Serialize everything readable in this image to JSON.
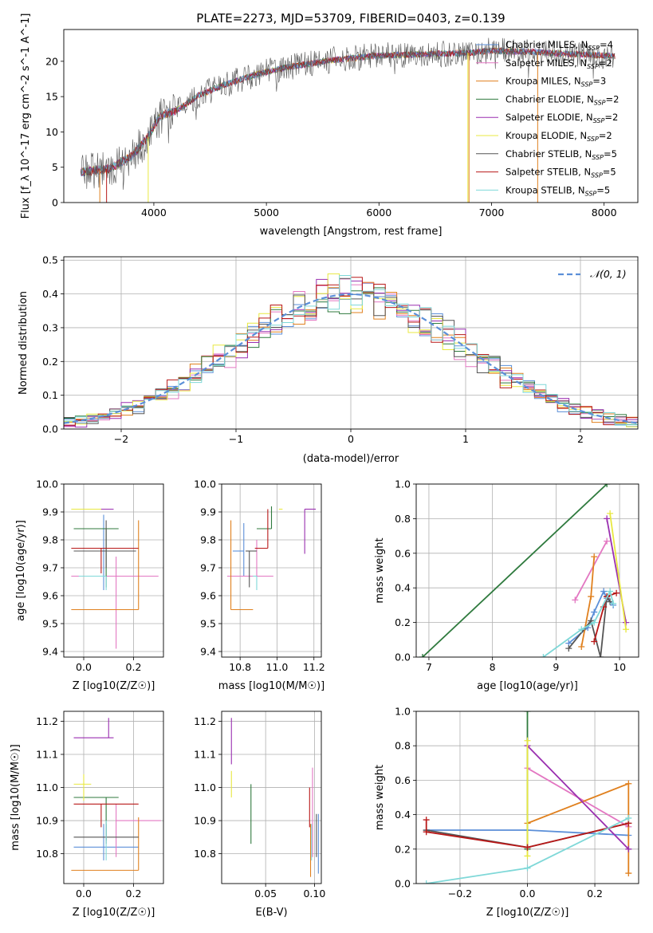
{
  "figure_title": "PLATE=2273, MJD=53709, FIBERID=0403, z=0.139",
  "colors": [
    "#5b8fd8",
    "#e377c2",
    "#e0801e",
    "#2f7a3e",
    "#9a2fb0",
    "#e8e840",
    "#555555",
    "#b81818",
    "#7fd8d8"
  ],
  "chart_data": [
    {
      "type": "line",
      "title": "PLATE=2273, MJD=53709, FIBERID=0403, z=0.139",
      "xlabel": "wavelength [Angstrom, rest frame]",
      "ylabel": "Flux [f_λ 10^-17 erg cm^-2 s^-1 A^-1]",
      "xlim": [
        3200,
        8300
      ],
      "ylim": [
        0,
        24.5
      ],
      "xticks": [
        4000,
        5000,
        6000,
        7000,
        8000
      ],
      "yticks": [
        0,
        5,
        10,
        15,
        20
      ],
      "grid": false,
      "legend_position": "right",
      "legend": [
        {
          "label": "Chabrier MILES, N",
          "sub": "SSP",
          "value": "=4"
        },
        {
          "label": "Salpeter MILES, N",
          "sub": "SSP",
          "value": "=2"
        },
        {
          "label": "Kroupa MILES, N",
          "sub": "SSP",
          "value": "=3"
        },
        {
          "label": "Chabrier ELODIE, N",
          "sub": "SSP",
          "value": "=2"
        },
        {
          "label": "Salpeter ELODIE, N",
          "sub": "SSP",
          "value": "=2"
        },
        {
          "label": "Kroupa ELODIE, N",
          "sub": "SSP",
          "value": "=2"
        },
        {
          "label": "Chabrier STELIB, N",
          "sub": "SSP",
          "value": "=5"
        },
        {
          "label": "Salpeter STELIB, N",
          "sub": "SSP",
          "value": "=5"
        },
        {
          "label": "Kroupa STELIB, N",
          "sub": "SSP",
          "value": "=5"
        }
      ],
      "continuum": {
        "x": [
          3350,
          3600,
          3800,
          3950,
          4050,
          4200,
          4400,
          4600,
          4800,
          5000,
          5200,
          5400,
          5600,
          5800,
          6000,
          6200,
          6400,
          6600,
          6800,
          7000,
          7200,
          7400,
          7600,
          7800,
          8000,
          8100
        ],
        "y": [
          4.3,
          4.8,
          6.5,
          9.3,
          12.2,
          13.0,
          15.2,
          16.5,
          17.6,
          18.5,
          19.2,
          19.7,
          20.2,
          20.5,
          20.8,
          20.9,
          21.0,
          21.1,
          21.2,
          21.5,
          21.4,
          21.3,
          21.1,
          21.0,
          20.8,
          20.7
        ]
      }
    },
    {
      "type": "line",
      "xlabel": "(data-model)/error",
      "ylabel": "Normed distribution",
      "xlim": [
        -2.5,
        2.5
      ],
      "ylim": [
        0,
        0.51
      ],
      "xticks": [
        -2,
        -1,
        0,
        1,
        2
      ],
      "yticks": [
        0.0,
        0.1,
        0.2,
        0.3,
        0.4,
        0.5
      ],
      "grid": true,
      "legend_position": "top-right",
      "legend": [
        "𝒩(0, 1)"
      ],
      "bin_width": 0.1
    },
    {
      "type": "scatter",
      "xlabel": "Z [log10(Z/Z☉)]",
      "ylabel": "age [log10(age/yr)]",
      "xlim": [
        -0.08,
        0.32
      ],
      "ylim": [
        9.38,
        10.0
      ],
      "xticks": [
        0.0,
        0.2
      ],
      "yticks": [
        9.4,
        9.5,
        9.6,
        9.7,
        9.8,
        9.9,
        10.0
      ],
      "grid": true,
      "points": [
        {
          "x": 0.08,
          "y": 9.67,
          "xerr": [
            0.12,
            0.14
          ],
          "yerr": [
            0.05,
            0.22
          ]
        },
        {
          "x": 0.13,
          "y": 9.67,
          "xerr": [
            0.18,
            0.17
          ],
          "yerr": [
            0.26,
            0.07
          ]
        },
        {
          "x": 0.22,
          "y": 9.55,
          "xerr": [
            0.27,
            0.0
          ],
          "yerr": [
            0.0,
            0.32
          ]
        },
        {
          "x": 0.09,
          "y": 9.84,
          "xerr": [
            0.13,
            0.05
          ],
          "yerr": [
            0.21,
            0.0
          ]
        },
        {
          "x": 0.1,
          "y": 9.91,
          "xerr": [
            0.13,
            0.02
          ],
          "yerr": [
            0.0,
            0.0
          ]
        },
        {
          "x": 0.06,
          "y": 9.91,
          "xerr": [
            0.11,
            0.01
          ],
          "yerr": [
            0.0,
            0.0
          ]
        },
        {
          "x": 0.09,
          "y": 9.76,
          "xerr": [
            0.13,
            0.12
          ],
          "yerr": [
            0.06,
            0.11
          ]
        },
        {
          "x": 0.07,
          "y": 9.77,
          "xerr": [
            0.12,
            0.15
          ],
          "yerr": [
            0.09,
            0.0
          ]
        },
        {
          "x": 0.09,
          "y": 9.67,
          "xerr": [
            0.11,
            0.0
          ],
          "yerr": [
            0.05,
            0.0
          ]
        }
      ]
    },
    {
      "type": "scatter",
      "xlabel": "mass [log10(M/M☉)]",
      "ylabel": "",
      "xlim": [
        10.7,
        11.24
      ],
      "ylim": [
        9.38,
        10.0
      ],
      "xticks": [
        10.8,
        11.0,
        11.2
      ],
      "yticks": [
        9.4,
        9.5,
        9.6,
        9.7,
        9.8,
        9.9,
        10.0
      ],
      "grid": true,
      "points": [
        {
          "x": 10.82,
          "y": 9.76,
          "xerr": [
            0.06,
            0.0
          ],
          "yerr": [
            0.09,
            0.1
          ]
        },
        {
          "x": 10.89,
          "y": 9.67,
          "xerr": [
            0.16,
            0.09
          ],
          "yerr": [
            0.0,
            0.13
          ]
        },
        {
          "x": 10.75,
          "y": 9.55,
          "xerr": [
            0.0,
            0.12
          ],
          "yerr": [
            0.0,
            0.32
          ]
        },
        {
          "x": 10.97,
          "y": 9.84,
          "xerr": [
            0.08,
            0.0
          ],
          "yerr": [
            0.0,
            0.08
          ]
        },
        {
          "x": 11.15,
          "y": 9.91,
          "xerr": [
            0.0,
            0.06
          ],
          "yerr": [
            0.16,
            0.0
          ]
        },
        {
          "x": 11.01,
          "y": 9.91,
          "xerr": [
            0.0,
            0.02
          ],
          "yerr": [
            0.0,
            0.0
          ]
        },
        {
          "x": 10.85,
          "y": 9.76,
          "xerr": [
            0.02,
            0.04
          ],
          "yerr": [
            0.13,
            0.0
          ]
        },
        {
          "x": 10.95,
          "y": 9.77,
          "xerr": [
            0.07,
            0.0
          ],
          "yerr": [
            0.0,
            0.14
          ]
        },
        {
          "x": 10.89,
          "y": 9.67,
          "xerr": [
            0.02,
            0.0
          ],
          "yerr": [
            0.05,
            0.0
          ]
        }
      ]
    },
    {
      "type": "line",
      "xlabel": "age [log10(age/yr)]",
      "ylabel": "mass weight",
      "xlim": [
        6.8,
        10.3
      ],
      "ylim": [
        0,
        1.0
      ],
      "xticks": [
        7,
        8,
        9,
        10
      ],
      "yticks": [
        0.0,
        0.2,
        0.4,
        0.6,
        0.8,
        1.0
      ],
      "grid": true,
      "series": [
        {
          "x": [
            9.2,
            9.5,
            9.6,
            9.75,
            9.8,
            9.9
          ],
          "y": [
            0.08,
            0.17,
            0.26,
            0.38,
            0.34,
            0.3
          ]
        },
        {
          "x": [
            9.3,
            9.8
          ],
          "y": [
            0.33,
            0.67
          ]
        },
        {
          "x": [
            9.4,
            9.55,
            9.6
          ],
          "y": [
            0.06,
            0.35,
            0.58
          ]
        },
        {
          "x": [
            6.9,
            9.8
          ],
          "y": [
            0.0,
            1.0
          ]
        },
        {
          "x": [
            9.8,
            10.1
          ],
          "y": [
            0.8,
            0.2
          ]
        },
        {
          "x": [
            9.85,
            10.1
          ],
          "y": [
            0.83,
            0.16
          ]
        },
        {
          "x": [
            9.2,
            9.55,
            9.7,
            9.8,
            9.85
          ],
          "y": [
            0.05,
            0.21,
            0.0,
            0.35,
            0.32
          ]
        },
        {
          "x": [
            9.6,
            9.75,
            9.8,
            9.95
          ],
          "y": [
            0.09,
            0.29,
            0.35,
            0.37
          ]
        },
        {
          "x": [
            8.8,
            9.4,
            9.6,
            9.85,
            9.9
          ],
          "y": [
            0.0,
            0.16,
            0.2,
            0.38,
            0.31
          ]
        }
      ]
    },
    {
      "type": "scatter",
      "xlabel": "Z [log10(Z/Z☉)]",
      "ylabel": "mass [log10(M/M☉)]",
      "xlim": [
        -0.08,
        0.32
      ],
      "ylim": [
        10.71,
        11.23
      ],
      "xticks": [
        0.0,
        0.2
      ],
      "yticks": [
        10.8,
        10.9,
        11.0,
        11.1,
        11.2
      ],
      "grid": true,
      "points": [
        {
          "x": 0.08,
          "y": 10.82,
          "xerr": [
            0.12,
            0.14
          ],
          "yerr": [
            0.04,
            0.07
          ]
        },
        {
          "x": 0.13,
          "y": 10.9,
          "xerr": [
            0.0,
            0.18
          ],
          "yerr": [
            0.11,
            0.05
          ]
        },
        {
          "x": 0.22,
          "y": 10.75,
          "xerr": [
            0.27,
            0.0
          ],
          "yerr": [
            0.0,
            0.16
          ]
        },
        {
          "x": 0.09,
          "y": 10.97,
          "xerr": [
            0.13,
            0.05
          ],
          "yerr": [
            0.13,
            0.0
          ]
        },
        {
          "x": 0.1,
          "y": 11.15,
          "xerr": [
            0.14,
            0.02
          ],
          "yerr": [
            0.0,
            0.06
          ]
        },
        {
          "x": 0.0,
          "y": 11.01,
          "xerr": [
            0.04,
            0.03
          ],
          "yerr": [
            0.05,
            0.03
          ]
        },
        {
          "x": 0.09,
          "y": 10.85,
          "xerr": [
            0.13,
            0.13
          ],
          "yerr": [
            0.02,
            0.04
          ]
        },
        {
          "x": 0.07,
          "y": 10.95,
          "xerr": [
            0.11,
            0.15
          ],
          "yerr": [
            0.07,
            0.0
          ]
        },
        {
          "x": 0.09,
          "y": 10.85,
          "xerr": [
            0.0,
            0.0
          ],
          "yerr": [
            0.07,
            0.05
          ]
        }
      ]
    },
    {
      "type": "scatter",
      "xlabel": "E(B-V)",
      "ylabel": "",
      "xlim": [
        0.005,
        0.107
      ],
      "ylim": [
        10.71,
        11.23
      ],
      "xticks": [
        0.05,
        0.1
      ],
      "yticks": [
        10.8,
        10.9,
        11.0,
        11.1,
        11.2
      ],
      "grid": true,
      "points": [
        {
          "x": 0.104,
          "y": 10.82,
          "yerr": [
            0.08,
            0.1
          ]
        },
        {
          "x": 0.098,
          "y": 10.9,
          "yerr": [
            0.11,
            0.16
          ]
        },
        {
          "x": 0.096,
          "y": 10.77,
          "yerr": [
            0.04,
            0.12
          ]
        },
        {
          "x": 0.035,
          "y": 10.92,
          "yerr": [
            0.09,
            0.09
          ]
        },
        {
          "x": 0.015,
          "y": 11.15,
          "yerr": [
            0.08,
            0.06
          ]
        },
        {
          "x": 0.015,
          "y": 11.01,
          "yerr": [
            0.04,
            0.04
          ]
        },
        {
          "x": 0.102,
          "y": 10.85,
          "yerr": [
            0.06,
            0.07
          ]
        },
        {
          "x": 0.095,
          "y": 10.94,
          "yerr": [
            0.06,
            0.06
          ]
        },
        {
          "x": 0.097,
          "y": 10.84,
          "yerr": [
            0.06,
            0.05
          ]
        }
      ]
    },
    {
      "type": "line",
      "xlabel": "Z [log10(Z/Z☉)]",
      "ylabel": "mass weight",
      "xlim": [
        -0.33,
        0.33
      ],
      "ylim": [
        0,
        1.0
      ],
      "xticks": [
        -0.2,
        0.0,
        0.2
      ],
      "yticks": [
        0.0,
        0.2,
        0.4,
        0.6,
        0.8,
        1.0
      ],
      "grid": true,
      "series": [
        {
          "x": [
            -0.3,
            0.0,
            0.3
          ],
          "y": [
            0.31,
            0.31,
            0.28
          ]
        },
        {
          "x": [
            0.0,
            0.3
          ],
          "y": [
            0.67,
            0.33
          ]
        },
        {
          "x": [
            0.0,
            0.3,
            0.3
          ],
          "y": [
            0.35,
            0.58,
            0.06
          ]
        },
        {
          "x": [
            0.0,
            0.0
          ],
          "y": [
            1.0,
            0.2
          ]
        },
        {
          "x": [
            0.0,
            0.3
          ],
          "y": [
            0.8,
            0.2
          ]
        },
        {
          "x": [
            0.0,
            0.0
          ],
          "y": [
            0.83,
            0.16
          ]
        },
        {
          "x": [
            -0.3,
            0.0,
            0.3
          ],
          "y": [
            0.31,
            0.21,
            0.35
          ]
        },
        {
          "x": [
            -0.3,
            -0.3,
            0.0,
            0.3
          ],
          "y": [
            0.37,
            0.3,
            0.21,
            0.35
          ]
        },
        {
          "x": [
            -0.3,
            0.0,
            0.3
          ],
          "y": [
            0.0,
            0.09,
            0.38
          ]
        }
      ]
    }
  ]
}
